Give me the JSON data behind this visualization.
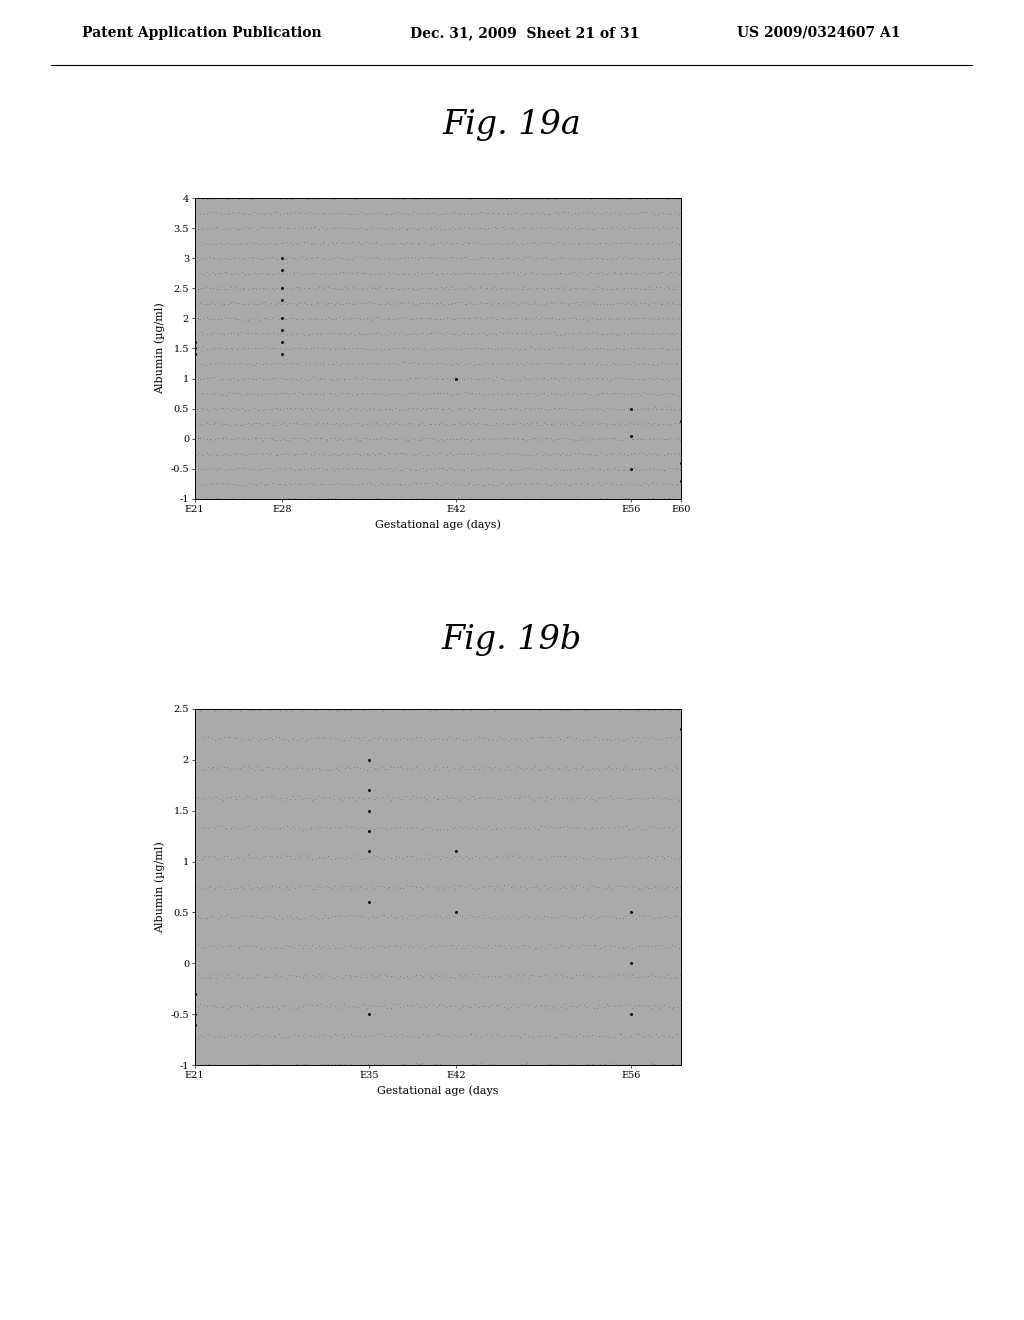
{
  "fig_title_a": "Fig. 19a",
  "fig_title_b": "Fig. 19b",
  "header_text": "Patent Application Publication",
  "header_date": "Dec. 31, 2009  Sheet 21 of 31",
  "header_patent": "US 2009/0324607 A1",
  "plot_a": {
    "xlabel": "Gestational age (days)",
    "ylabel": "Albumin (µg/ml)",
    "xlim": [
      21,
      60
    ],
    "ylim": [
      -1,
      4
    ],
    "yticks": [
      -1,
      -0.5,
      0,
      0.5,
      1,
      1.5,
      2,
      2.5,
      3,
      3.5,
      4
    ],
    "xtick_labels": [
      "E21",
      "E28",
      "E42",
      "E56",
      "E60"
    ],
    "xtick_positions": [
      21,
      28,
      42,
      56,
      60
    ],
    "bg_color": "#aaaaaa",
    "points_x": [
      28,
      28,
      28,
      28,
      28,
      28,
      28,
      28,
      21,
      21,
      21,
      42,
      56,
      56,
      56,
      60,
      60,
      60
    ],
    "points_y": [
      3.0,
      2.8,
      2.5,
      2.3,
      2.0,
      1.8,
      1.6,
      1.4,
      1.6,
      1.5,
      1.4,
      1.0,
      0.5,
      0.05,
      -0.5,
      0.3,
      -0.4,
      -0.7
    ]
  },
  "plot_b": {
    "xlabel": "Gestational age (days",
    "ylabel": "Albumin (µg/ml)",
    "xlim": [
      21,
      60
    ],
    "ylim": [
      -1,
      2.5
    ],
    "yticks": [
      -1,
      -0.5,
      0,
      0.5,
      1,
      1.5,
      2,
      2.5
    ],
    "xtick_labels": [
      "E21",
      "E35",
      "E42",
      "E56"
    ],
    "xtick_positions": [
      21,
      35,
      42,
      56
    ],
    "bg_color": "#aaaaaa",
    "points_x": [
      35,
      35,
      35,
      35,
      35,
      35,
      35,
      21,
      21,
      21,
      42,
      42,
      56,
      56,
      56,
      60
    ],
    "points_y": [
      2.0,
      1.7,
      1.5,
      1.3,
      1.1,
      0.6,
      -0.5,
      -0.3,
      -0.5,
      -0.6,
      1.1,
      0.5,
      0.5,
      0.0,
      -0.5,
      2.3
    ]
  }
}
